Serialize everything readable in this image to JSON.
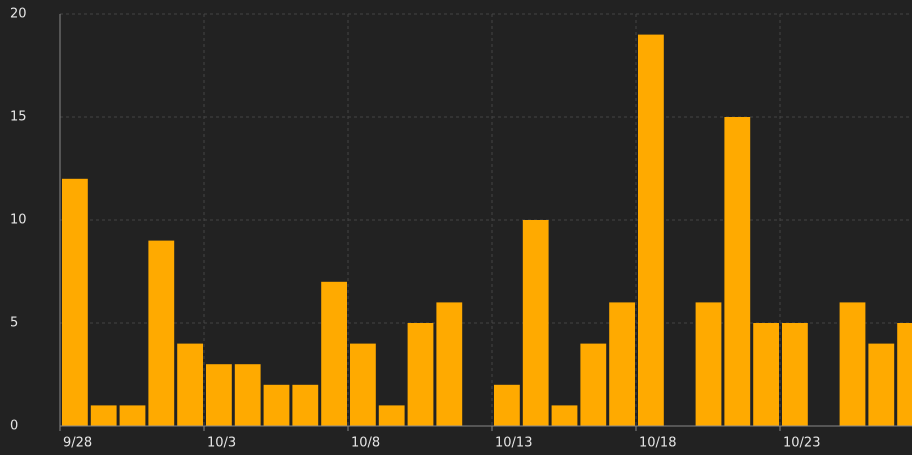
{
  "chart_data": {
    "type": "bar",
    "categories": [
      "9/28",
      null,
      null,
      null,
      null,
      "10/3",
      null,
      null,
      null,
      null,
      "10/8",
      null,
      null,
      null,
      null,
      "10/13",
      null,
      null,
      null,
      null,
      "10/18",
      null,
      null,
      null,
      null,
      "10/23",
      null,
      null,
      null,
      null
    ],
    "values": [
      12,
      1,
      1,
      9,
      4,
      3,
      3,
      2,
      2,
      7,
      4,
      1,
      5,
      6,
      0,
      2,
      10,
      1,
      4,
      6,
      19,
      0,
      6,
      15,
      5,
      5,
      0,
      6,
      4,
      5
    ],
    "color": "#ffaa00",
    "ylim": [
      0,
      20
    ],
    "yticks": [
      0,
      5,
      10,
      15,
      20
    ],
    "grid": true
  }
}
